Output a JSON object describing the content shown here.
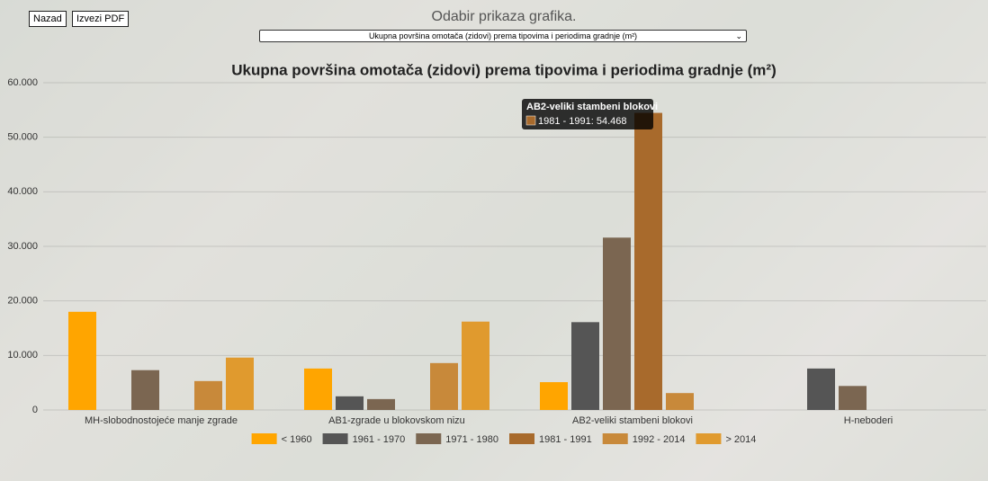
{
  "header": {
    "buttons": [
      "Nazad",
      "Izvezi PDF"
    ],
    "title": "Odabir prikaza grafika.",
    "select": "Ukupna površina omotača (zidovi) prema tipovima i periodima gradnje (m²)"
  },
  "chart_data": {
    "type": "bar",
    "title": "Ukupna površina omotača (zidovi) prema tipovima i periodima gradnje (m²)",
    "categories": [
      "MH-slobodnostojeće manje zgrade",
      "AB1-zgrade u blokovskom nizu",
      "AB2-veliki stambeni blokovi",
      "H-neboderi"
    ],
    "series": [
      {
        "name": "< 1960",
        "color": "#ffa500",
        "values": [
          18000,
          7600,
          5100,
          null
        ]
      },
      {
        "name": "1961 - 1970",
        "color": "#555555",
        "values": [
          null,
          2500,
          16100,
          7600
        ]
      },
      {
        "name": "1971 - 1980",
        "color": "#7b6651",
        "values": [
          7300,
          2000,
          31600,
          4400
        ]
      },
      {
        "name": "1981 - 1991",
        "color": "#a86a2c",
        "values": [
          null,
          null,
          54468,
          null
        ]
      },
      {
        "name": "1992 - 2014",
        "color": "#c8893a",
        "values": [
          5300,
          8600,
          3100,
          null
        ]
      },
      {
        "name": "> 2014",
        "color": "#e09a2e",
        "values": [
          9600,
          16200,
          null,
          null
        ]
      }
    ],
    "ylim": [
      0,
      60000
    ],
    "yticks": [
      0,
      {
        "value": 10000,
        "label": "10.000"
      },
      {
        "value": 20000,
        "label": "20.000"
      },
      {
        "value": 30000,
        "label": "30.000"
      },
      {
        "value": 40000,
        "label": "40.000"
      },
      {
        "value": 50000,
        "label": "50.000"
      },
      {
        "value": 60000,
        "label": "60.000"
      }
    ],
    "grid": true,
    "legend": "bottom",
    "tooltip": {
      "title": "AB2-veliki stambeni blokovi",
      "body": "1981 - 1991: 54.468"
    }
  }
}
